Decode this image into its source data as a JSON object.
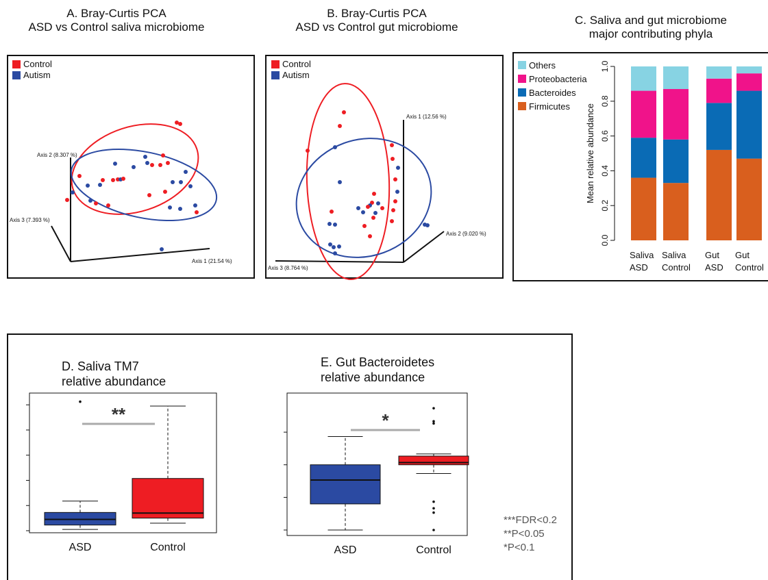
{
  "panel_a": {
    "title": [
      "A. Bray-Curtis PCA",
      "ASD vs Control saliva microbiome"
    ],
    "legend": [
      {
        "label": "Control",
        "color": "#ee1d23"
      },
      {
        "label": "Autism",
        "color": "#2b4aa2"
      }
    ],
    "axis_labels": [
      "Axis 2 (8.307 %)",
      "Axis 3 (7.393 %)",
      "Axis 1 (21.54 %)"
    ]
  },
  "panel_b": {
    "title": [
      "B. Bray-Curtis PCA",
      "ASD vs Control gut microbiome"
    ],
    "legend": [
      {
        "label": "Control",
        "color": "#ee1d23"
      },
      {
        "label": "Autism",
        "color": "#2b4aa2"
      }
    ],
    "axis_labels": [
      "Axis 1 (12.56 %)",
      "Axis 2 (9.020 %)",
      "Axis 3 (8.764 %)"
    ]
  },
  "panel_d": {
    "title": [
      "D. Saliva TM7",
      "relative abundance"
    ]
  },
  "panel_e": {
    "title": [
      "E. Gut Bacteroidetes",
      "relative abundance"
    ]
  },
  "significance_notes": [
    "***FDR<0.2",
    "**P<0.05",
    "*P<0.1"
  ],
  "chart_data": [
    {
      "id": "C",
      "type": "bar",
      "title": [
        "C. Saliva and gut microbiome",
        "major contributing phyla"
      ],
      "ylabel": "Mean relative abundance",
      "ylim": [
        0,
        1.0
      ],
      "y_ticks": [
        "0.0",
        "0.2",
        "0.4",
        "0.6",
        "0.8",
        "1.0"
      ],
      "categories": [
        [
          "Saliva",
          "ASD"
        ],
        [
          "Saliva",
          "Control"
        ],
        [
          "Gut",
          "ASD"
        ],
        [
          "Gut",
          "Control"
        ]
      ],
      "legend_placement": "top-left",
      "series": [
        {
          "name": "Firmicutes",
          "color": "#d95f1e",
          "values": [
            0.36,
            0.33,
            0.52,
            0.47
          ]
        },
        {
          "name": "Bacteroides",
          "color": "#0a6bb5",
          "values": [
            0.23,
            0.25,
            0.27,
            0.39
          ]
        },
        {
          "name": "Proteobacteria",
          "color": "#f0138a",
          "values": [
            0.27,
            0.29,
            0.14,
            0.1
          ]
        },
        {
          "name": "Others",
          "color": "#87d3e3",
          "values": [
            0.14,
            0.13,
            0.07,
            0.04
          ]
        }
      ]
    },
    {
      "id": "D",
      "type": "box",
      "categories": [
        "ASD",
        "Control"
      ],
      "significance": "**",
      "series": [
        {
          "name": "ASD",
          "color": "#2b4aa2",
          "min": 0.2,
          "q1": 0.9,
          "median": 1.8,
          "q3": 2.9,
          "max": 4.7,
          "outliers": [
            20.5
          ]
        },
        {
          "name": "Control",
          "color": "#ee1d23",
          "min": 1.2,
          "q1": 2.0,
          "median": 2.8,
          "q3": 8.3,
          "max": 19.8,
          "outliers": []
        }
      ]
    },
    {
      "id": "E",
      "type": "box",
      "categories": [
        "ASD",
        "Control"
      ],
      "significance": "*",
      "series": [
        {
          "name": "ASD",
          "color": "#2b4aa2",
          "min": 0.0,
          "q1": 1.2,
          "median": 2.3,
          "q3": 3.0,
          "max": 4.3,
          "outliers": []
        },
        {
          "name": "Control",
          "color": "#ee1d23",
          "min": 2.6,
          "q1": 3.0,
          "median": 3.1,
          "q3": 3.4,
          "max": 3.5,
          "outliers": [
            0.0,
            0.8,
            1.0,
            1.3,
            4.9,
            5.0,
            5.6
          ]
        }
      ]
    }
  ]
}
